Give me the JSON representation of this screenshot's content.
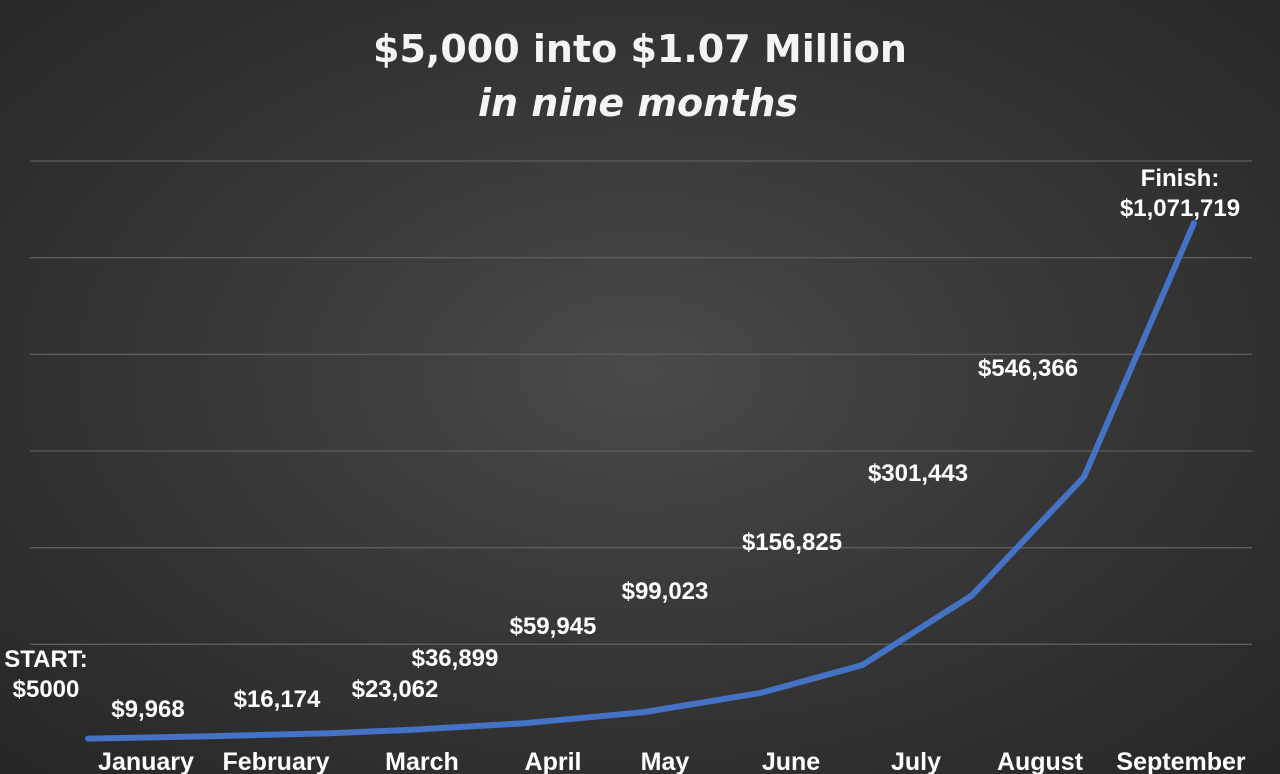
{
  "chart_data": {
    "type": "line",
    "title": "$5,000 into $1.07 Million",
    "subtitle": "in nine months",
    "categories": [
      "January",
      "February",
      "March",
      "April",
      "May",
      "June",
      "July",
      "August",
      "September"
    ],
    "points": [
      {
        "x": "January",
        "y": 5000,
        "label_lines": [
          "START:",
          "$5000"
        ]
      },
      {
        "x": "January",
        "y": 9968,
        "label_lines": [
          "$9,968"
        ]
      },
      {
        "x": "February",
        "y": 16174,
        "label_lines": [
          "$16,174"
        ]
      },
      {
        "x": "March",
        "y": 23062,
        "label_lines": [
          "$23,062"
        ]
      },
      {
        "x": "March",
        "y": 36899,
        "label_lines": [
          "$36,899"
        ]
      },
      {
        "x": "April",
        "y": 59945,
        "label_lines": [
          "$59,945"
        ]
      },
      {
        "x": "May",
        "y": 99023,
        "label_lines": [
          "$99,023"
        ]
      },
      {
        "x": "June",
        "y": 156825,
        "label_lines": [
          "$156,825"
        ]
      },
      {
        "x": "July",
        "y": 301443,
        "label_lines": [
          "$301,443"
        ]
      },
      {
        "x": "August",
        "y": 546366,
        "label_lines": [
          "$546,366"
        ]
      },
      {
        "x": "September",
        "y": 1071719,
        "label_lines": [
          "Finish:",
          "$1,071,719"
        ]
      }
    ],
    "ylim": [
      0,
      1200000
    ],
    "y_axis_labels_shown": false,
    "grid": true,
    "legend": "none",
    "line_color": "#4472c4"
  }
}
